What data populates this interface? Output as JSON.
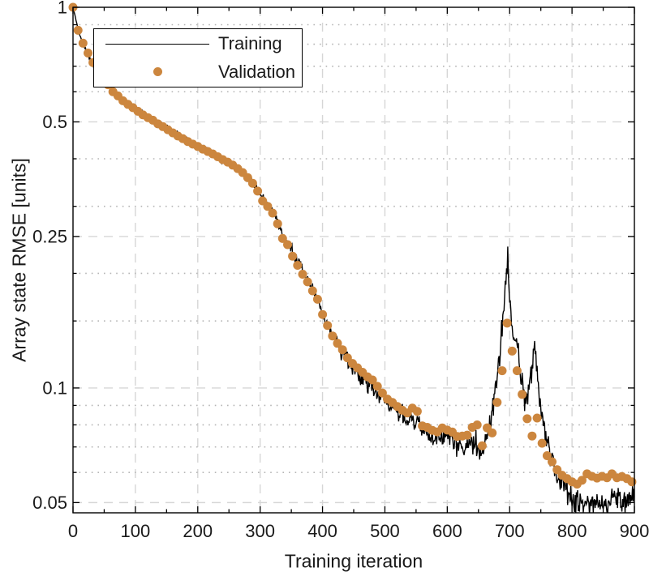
{
  "chart_data": {
    "type": "line",
    "title": "",
    "xlabel": "Training iteration",
    "ylabel": "Array state RMSE [units]",
    "xlim": [
      0,
      900
    ],
    "ylim": [
      0.047,
      1.0
    ],
    "yscale": "log10",
    "xticks": [
      0,
      100,
      200,
      300,
      400,
      500,
      600,
      700,
      800,
      900
    ],
    "xtick_labels": [
      "0",
      "100",
      "200",
      "300",
      "400",
      "500",
      "600",
      "700",
      "800",
      "900"
    ],
    "x_minor_ticks": [
      50,
      150,
      250,
      350,
      450,
      550,
      650,
      750,
      850
    ],
    "yticks": [
      1,
      0.5,
      0.25,
      0.1,
      0.05
    ],
    "ytick_labels": [
      "1",
      "0.5",
      "0.25",
      "0.1",
      "0.05"
    ],
    "y_minor_ticks": [
      0.9,
      0.8,
      0.7,
      0.6,
      0.4,
      0.3,
      0.2,
      0.15,
      0.09,
      0.08,
      0.07,
      0.06
    ],
    "grid": {
      "major": "dashed",
      "y_minor": "dotted",
      "major_color": "#d6d6d6",
      "minor_color": "#b5b5b5"
    },
    "legend_position": "northwest-inside",
    "colors": {
      "training": "#000000",
      "validation": "#cc863e",
      "axis": "#000000",
      "text": "#1a1a1a"
    },
    "series": [
      {
        "name": "Training",
        "style": "line",
        "color": "#000000",
        "keypoints": [
          [
            0,
            1.0
          ],
          [
            3,
            0.955
          ],
          [
            6,
            0.905
          ],
          [
            10,
            0.853
          ],
          [
            15,
            0.813
          ],
          [
            20,
            0.775
          ],
          [
            25,
            0.745
          ],
          [
            30,
            0.716
          ],
          [
            36,
            0.69
          ],
          [
            42,
            0.668
          ],
          [
            50,
            0.645
          ],
          [
            58,
            0.622
          ],
          [
            66,
            0.602
          ],
          [
            75,
            0.585
          ],
          [
            85,
            0.566
          ],
          [
            95,
            0.55
          ],
          [
            105,
            0.536
          ],
          [
            115,
            0.524
          ],
          [
            125,
            0.513
          ],
          [
            135,
            0.501
          ],
          [
            145,
            0.489
          ],
          [
            155,
            0.477
          ],
          [
            165,
            0.466
          ],
          [
            175,
            0.455
          ],
          [
            185,
            0.446
          ],
          [
            195,
            0.437
          ],
          [
            205,
            0.428
          ],
          [
            215,
            0.42
          ],
          [
            225,
            0.411
          ],
          [
            235,
            0.403
          ],
          [
            245,
            0.394
          ],
          [
            255,
            0.386
          ],
          [
            265,
            0.376
          ],
          [
            275,
            0.364
          ],
          [
            285,
            0.35
          ],
          [
            295,
            0.332
          ],
          [
            305,
            0.311
          ],
          [
            315,
            0.298
          ],
          [
            325,
            0.281
          ],
          [
            335,
            0.258
          ],
          [
            345,
            0.24
          ],
          [
            355,
            0.224
          ],
          [
            365,
            0.207
          ],
          [
            375,
            0.193
          ],
          [
            385,
            0.18
          ],
          [
            395,
            0.165
          ],
          [
            405,
            0.15
          ],
          [
            415,
            0.14
          ],
          [
            425,
            0.13
          ],
          [
            435,
            0.122
          ],
          [
            445,
            0.116
          ],
          [
            455,
            0.11
          ],
          [
            465,
            0.106
          ],
          [
            475,
            0.102
          ],
          [
            485,
            0.0985
          ],
          [
            495,
            0.094
          ],
          [
            505,
            0.0905
          ],
          [
            515,
            0.0878
          ],
          [
            525,
            0.0855
          ],
          [
            535,
            0.0838
          ],
          [
            545,
            0.082
          ],
          [
            555,
            0.079
          ],
          [
            565,
            0.0765
          ],
          [
            575,
            0.0745
          ],
          [
            585,
            0.0732
          ],
          [
            595,
            0.0745
          ],
          [
            605,
            0.0735
          ],
          [
            615,
            0.0715
          ],
          [
            625,
            0.07
          ],
          [
            635,
            0.0712
          ],
          [
            645,
            0.073
          ],
          [
            652,
            0.069
          ],
          [
            658,
            0.07
          ],
          [
            664,
            0.0755
          ],
          [
            670,
            0.084
          ],
          [
            676,
            0.096
          ],
          [
            682,
            0.115
          ],
          [
            687,
            0.14
          ],
          [
            691,
            0.17
          ],
          [
            694,
            0.195
          ],
          [
            697,
            0.225
          ],
          [
            699,
            0.19
          ],
          [
            702,
            0.16
          ],
          [
            705,
            0.14
          ],
          [
            708,
            0.13
          ],
          [
            711,
            0.138
          ],
          [
            714,
            0.125
          ],
          [
            718,
            0.11
          ],
          [
            722,
            0.098
          ],
          [
            726,
            0.09
          ],
          [
            730,
            0.096
          ],
          [
            734,
            0.106
          ],
          [
            738,
            0.12
          ],
          [
            741,
            0.128
          ],
          [
            744,
            0.11
          ],
          [
            748,
            0.093
          ],
          [
            752,
            0.083
          ],
          [
            757,
            0.075
          ],
          [
            762,
            0.069
          ],
          [
            768,
            0.064
          ],
          [
            774,
            0.0605
          ],
          [
            780,
            0.058
          ],
          [
            786,
            0.056
          ],
          [
            792,
            0.054
          ],
          [
            798,
            0.0522
          ],
          [
            804,
            0.0508
          ],
          [
            810,
            0.0498
          ],
          [
            818,
            0.049
          ],
          [
            826,
            0.0494
          ],
          [
            834,
            0.05
          ],
          [
            842,
            0.0491
          ],
          [
            850,
            0.0504
          ],
          [
            858,
            0.0497
          ],
          [
            866,
            0.0515
          ],
          [
            874,
            0.0503
          ],
          [
            882,
            0.0498
          ],
          [
            890,
            0.0505
          ],
          [
            900,
            0.052
          ]
        ],
        "noise_log10_segments": [
          [
            0,
            5,
            0
          ],
          [
            5,
            150,
            0.004
          ],
          [
            150,
            300,
            0.008
          ],
          [
            300,
            420,
            0.014
          ],
          [
            420,
            560,
            0.02
          ],
          [
            560,
            665,
            0.024
          ],
          [
            665,
            755,
            0.03
          ],
          [
            755,
            900,
            0.026
          ]
        ]
      },
      {
        "name": "Validation",
        "style": "scatter",
        "color": "#cc863e",
        "marker_radius": 5.5,
        "points": [
          [
            0,
            1.0
          ],
          [
            8,
            0.87
          ],
          [
            16,
            0.805
          ],
          [
            24,
            0.758
          ],
          [
            32,
            0.716
          ],
          [
            40,
            0.681
          ],
          [
            48,
            0.652
          ],
          [
            56,
            0.626
          ],
          [
            64,
            0.6
          ],
          [
            72,
            0.585
          ],
          [
            80,
            0.568
          ],
          [
            88,
            0.556
          ],
          [
            96,
            0.545
          ],
          [
            104,
            0.533
          ],
          [
            112,
            0.522
          ],
          [
            120,
            0.513
          ],
          [
            128,
            0.505
          ],
          [
            136,
            0.494
          ],
          [
            144,
            0.486
          ],
          [
            152,
            0.477
          ],
          [
            160,
            0.468
          ],
          [
            168,
            0.459
          ],
          [
            176,
            0.452
          ],
          [
            184,
            0.444
          ],
          [
            192,
            0.437
          ],
          [
            200,
            0.431
          ],
          [
            208,
            0.424
          ],
          [
            216,
            0.418
          ],
          [
            224,
            0.412
          ],
          [
            232,
            0.405
          ],
          [
            240,
            0.398
          ],
          [
            248,
            0.392
          ],
          [
            256,
            0.385
          ],
          [
            264,
            0.377
          ],
          [
            272,
            0.368
          ],
          [
            280,
            0.357
          ],
          [
            288,
            0.345
          ],
          [
            296,
            0.329
          ],
          [
            304,
            0.31
          ],
          [
            312,
            0.3
          ],
          [
            320,
            0.288
          ],
          [
            328,
            0.27
          ],
          [
            336,
            0.247
          ],
          [
            344,
            0.238
          ],
          [
            352,
            0.222
          ],
          [
            360,
            0.21
          ],
          [
            368,
            0.199
          ],
          [
            376,
            0.19
          ],
          [
            384,
            0.18
          ],
          [
            392,
            0.171
          ],
          [
            400,
            0.156
          ],
          [
            408,
            0.146
          ],
          [
            416,
            0.137
          ],
          [
            424,
            0.131
          ],
          [
            432,
            0.126
          ],
          [
            440,
            0.12
          ],
          [
            448,
            0.116
          ],
          [
            456,
            0.113
          ],
          [
            464,
            0.11
          ],
          [
            472,
            0.107
          ],
          [
            480,
            0.105
          ],
          [
            488,
            0.101
          ],
          [
            496,
            0.097
          ],
          [
            504,
            0.0935
          ],
          [
            512,
            0.0916
          ],
          [
            520,
            0.0894
          ],
          [
            528,
            0.0874
          ],
          [
            536,
            0.086
          ],
          [
            544,
            0.0885
          ],
          [
            552,
            0.0868
          ],
          [
            560,
            0.0795
          ],
          [
            568,
            0.0788
          ],
          [
            576,
            0.0774
          ],
          [
            584,
            0.0767
          ],
          [
            592,
            0.0785
          ],
          [
            600,
            0.0775
          ],
          [
            608,
            0.0766
          ],
          [
            616,
            0.0746
          ],
          [
            624,
            0.0748
          ],
          [
            632,
            0.0752
          ],
          [
            640,
            0.0788
          ],
          [
            648,
            0.08
          ],
          [
            656,
            0.0705
          ],
          [
            664,
            0.0786
          ],
          [
            672,
            0.0762
          ],
          [
            680,
            0.0917
          ],
          [
            688,
            0.111
          ],
          [
            696,
            0.148
          ],
          [
            704,
            0.125
          ],
          [
            712,
            0.111
          ],
          [
            720,
            0.0962
          ],
          [
            728,
            0.083
          ],
          [
            736,
            0.0748
          ],
          [
            744,
            0.0834
          ],
          [
            752,
            0.0716
          ],
          [
            760,
            0.0664
          ],
          [
            768,
            0.064
          ],
          [
            776,
            0.061
          ],
          [
            784,
            0.059
          ],
          [
            792,
            0.0578
          ],
          [
            800,
            0.0567
          ],
          [
            808,
            0.0559
          ],
          [
            816,
            0.0572
          ],
          [
            824,
            0.0595
          ],
          [
            832,
            0.0586
          ],
          [
            840,
            0.058
          ],
          [
            848,
            0.0586
          ],
          [
            856,
            0.0581
          ],
          [
            864,
            0.0595
          ],
          [
            872,
            0.0581
          ],
          [
            880,
            0.0585
          ],
          [
            888,
            0.0578
          ],
          [
            896,
            0.0567
          ]
        ]
      }
    ]
  },
  "legend": {
    "training_label": "Training",
    "validation_label": "Validation"
  }
}
